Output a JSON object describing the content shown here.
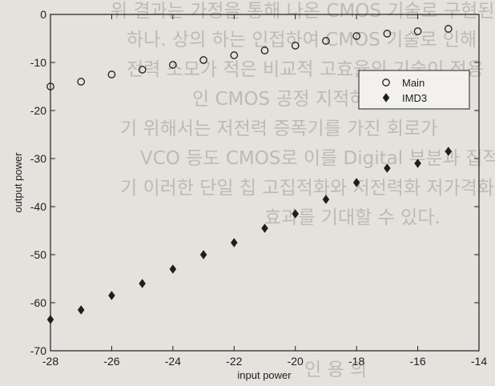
{
  "background_text": [
    "위 결과는 가정을 통해 나온 CMOS 기술로 구현된",
    "하나. 상의 하는 인접하여 CMOS 기술로 인해",
    "전력 소모가 적은 비교적 고효율의 기술이 적용",
    "인 CMOS 공정 지적하고 할 수 있다",
    "기 위해서는 저전력 증폭기를 가진 회로가",
    "VCO 등도 CMOS로 이를 Digital 부분과 집적",
    "기 이러한 단일 칩 고집적화와 저전력화 저가격화",
    "효과를 기대할 수 있다.",
    "인 용 의"
  ],
  "chart_data": {
    "type": "scatter",
    "xlabel": "input power",
    "ylabel": "output power",
    "xlim": [
      -28,
      -14
    ],
    "ylim": [
      -70,
      0
    ],
    "xticks": [
      -28,
      -26,
      -24,
      -22,
      -20,
      -18,
      -16,
      -14
    ],
    "yticks": [
      0,
      -10,
      -20,
      -30,
      -40,
      -50,
      -60,
      -70
    ],
    "grid": false,
    "legend_position": "top-right",
    "series": [
      {
        "name": "Main",
        "marker": "circle-open",
        "x": [
          -28,
          -27,
          -26,
          -25,
          -24,
          -23,
          -22,
          -21,
          -20,
          -19,
          -18,
          -17,
          -16,
          -15
        ],
        "y": [
          -15,
          -14,
          -12.5,
          -11.5,
          -10.5,
          -9.5,
          -8.5,
          -7.5,
          -6.5,
          -5.5,
          -4.5,
          -4,
          -3.5,
          -3
        ]
      },
      {
        "name": "IMD3",
        "marker": "diamond-filled",
        "x": [
          -28,
          -27,
          -26,
          -25,
          -24,
          -23,
          -22,
          -21,
          -20,
          -19,
          -18,
          -17,
          -16,
          -15
        ],
        "y": [
          -63.5,
          -61.5,
          -58.5,
          -56,
          -53,
          -50,
          -47.5,
          -44.5,
          -41.5,
          -38.5,
          -35,
          -32,
          -31,
          -28.5
        ]
      }
    ]
  }
}
